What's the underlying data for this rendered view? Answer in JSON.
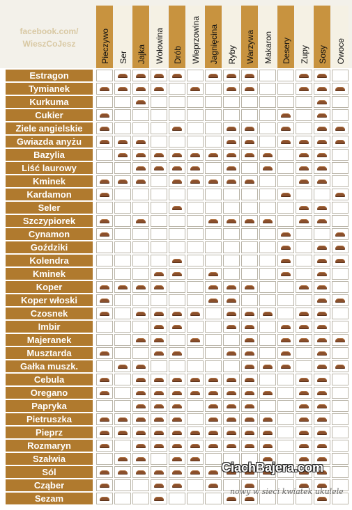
{
  "brand": {
    "line1": "facebook.com/",
    "line2": "WieszCoJesz"
  },
  "colors": {
    "label_bg": "#b07a2e",
    "header_odd": "#c8933f",
    "header_even": "#f5f1e4",
    "cell_fill": "#ffffff",
    "grid": "#b9b4a7",
    "spice": "#8a4f2b"
  },
  "icon": "spice-pile-icon",
  "columns": [
    "Pieczywo",
    "Ser",
    "Jajka",
    "Wołowina",
    "Drób",
    "Wieprzowina",
    "Jagnięcina",
    "Ryby",
    "Warzywa",
    "Makaron",
    "Desery",
    "Zupy",
    "Sosy",
    "Owoce"
  ],
  "rows": [
    {
      "name": "Estragon",
      "marks": [
        0,
        1,
        1,
        1,
        1,
        0,
        1,
        1,
        1,
        0,
        0,
        1,
        1,
        0
      ]
    },
    {
      "name": "Tymianek",
      "marks": [
        1,
        1,
        1,
        1,
        0,
        1,
        0,
        1,
        1,
        0,
        0,
        1,
        1,
        1
      ]
    },
    {
      "name": "Kurkuma",
      "marks": [
        0,
        0,
        1,
        0,
        0,
        0,
        0,
        0,
        0,
        0,
        0,
        0,
        1,
        0
      ]
    },
    {
      "name": "Cukier",
      "marks": [
        1,
        0,
        0,
        0,
        0,
        0,
        0,
        0,
        0,
        0,
        1,
        0,
        1,
        0
      ]
    },
    {
      "name": "Ziele angielskie",
      "marks": [
        1,
        0,
        0,
        0,
        1,
        0,
        0,
        1,
        1,
        0,
        1,
        0,
        1,
        1
      ]
    },
    {
      "name": "Gwiazda anyżu",
      "marks": [
        1,
        1,
        1,
        0,
        0,
        0,
        0,
        1,
        1,
        0,
        1,
        1,
        1,
        1
      ]
    },
    {
      "name": "Bazylia",
      "marks": [
        0,
        1,
        1,
        1,
        1,
        1,
        1,
        1,
        1,
        1,
        0,
        1,
        1,
        0
      ]
    },
    {
      "name": "Liść laurowy",
      "marks": [
        0,
        0,
        1,
        1,
        1,
        1,
        0,
        1,
        0,
        1,
        0,
        1,
        1,
        0
      ]
    },
    {
      "name": "Kminek",
      "marks": [
        1,
        1,
        1,
        0,
        1,
        1,
        1,
        1,
        1,
        0,
        0,
        1,
        1,
        0
      ]
    },
    {
      "name": "Kardamon",
      "marks": [
        1,
        0,
        0,
        0,
        0,
        0,
        0,
        0,
        0,
        0,
        1,
        0,
        0,
        1
      ]
    },
    {
      "name": "Seler",
      "marks": [
        0,
        0,
        0,
        0,
        1,
        0,
        0,
        0,
        0,
        0,
        0,
        1,
        1,
        0
      ]
    },
    {
      "name": "Szczypiorek",
      "marks": [
        1,
        0,
        1,
        0,
        0,
        0,
        1,
        1,
        1,
        1,
        0,
        1,
        1,
        0
      ]
    },
    {
      "name": "Cynamon",
      "marks": [
        1,
        0,
        0,
        0,
        0,
        0,
        0,
        0,
        0,
        0,
        1,
        0,
        0,
        1
      ]
    },
    {
      "name": "Goździki",
      "marks": [
        0,
        0,
        0,
        0,
        0,
        0,
        0,
        0,
        0,
        0,
        1,
        0,
        1,
        1
      ]
    },
    {
      "name": "Kolendra",
      "marks": [
        0,
        0,
        0,
        0,
        1,
        0,
        0,
        0,
        0,
        0,
        1,
        0,
        1,
        1
      ]
    },
    {
      "name": "Kminek",
      "marks": [
        0,
        0,
        0,
        1,
        1,
        0,
        1,
        0,
        0,
        0,
        1,
        0,
        1,
        0
      ]
    },
    {
      "name": "Koper",
      "marks": [
        1,
        1,
        1,
        1,
        0,
        0,
        1,
        1,
        1,
        0,
        0,
        1,
        1,
        0
      ]
    },
    {
      "name": "Koper włoski",
      "marks": [
        1,
        0,
        0,
        0,
        0,
        0,
        1,
        1,
        0,
        0,
        0,
        0,
        1,
        1
      ]
    },
    {
      "name": "Czosnek",
      "marks": [
        1,
        0,
        1,
        1,
        1,
        1,
        0,
        1,
        1,
        1,
        0,
        1,
        1,
        0
      ]
    },
    {
      "name": "Imbir",
      "marks": [
        0,
        0,
        0,
        1,
        1,
        0,
        0,
        1,
        1,
        0,
        1,
        1,
        1,
        0
      ]
    },
    {
      "name": "Majeranek",
      "marks": [
        0,
        0,
        1,
        1,
        0,
        1,
        0,
        0,
        1,
        0,
        1,
        1,
        1,
        1
      ]
    },
    {
      "name": "Musztarda",
      "marks": [
        1,
        0,
        0,
        1,
        1,
        0,
        0,
        1,
        1,
        0,
        1,
        0,
        1,
        0
      ]
    },
    {
      "name": "Gałka muszk.",
      "marks": [
        0,
        1,
        1,
        0,
        0,
        0,
        0,
        0,
        1,
        1,
        1,
        0,
        1,
        1
      ]
    },
    {
      "name": "Cebula",
      "marks": [
        1,
        0,
        1,
        1,
        1,
        1,
        1,
        1,
        1,
        0,
        0,
        1,
        1,
        0
      ]
    },
    {
      "name": "Oregano",
      "marks": [
        1,
        0,
        1,
        1,
        1,
        1,
        1,
        1,
        1,
        1,
        0,
        1,
        1,
        0
      ]
    },
    {
      "name": "Papryka",
      "marks": [
        0,
        0,
        1,
        1,
        1,
        0,
        1,
        1,
        1,
        0,
        0,
        1,
        1,
        0
      ]
    },
    {
      "name": "Pietruszka",
      "marks": [
        1,
        1,
        1,
        1,
        1,
        0,
        1,
        1,
        1,
        1,
        0,
        1,
        1,
        0
      ]
    },
    {
      "name": "Pieprz",
      "marks": [
        1,
        1,
        1,
        1,
        1,
        1,
        1,
        1,
        1,
        1,
        0,
        1,
        1,
        0
      ]
    },
    {
      "name": "Rozmaryn",
      "marks": [
        1,
        0,
        1,
        1,
        1,
        1,
        1,
        1,
        1,
        1,
        0,
        1,
        1,
        0
      ]
    },
    {
      "name": "Szałwia",
      "marks": [
        0,
        1,
        1,
        0,
        1,
        1,
        0,
        0,
        0,
        1,
        0,
        1,
        1,
        0
      ]
    },
    {
      "name": "Sól",
      "marks": [
        1,
        1,
        1,
        1,
        1,
        1,
        1,
        1,
        1,
        1,
        0,
        1,
        1,
        0
      ]
    },
    {
      "name": "Cząber",
      "marks": [
        1,
        0,
        0,
        1,
        1,
        0,
        1,
        0,
        1,
        0,
        0,
        1,
        1,
        0
      ]
    },
    {
      "name": "Sezam",
      "marks": [
        1,
        0,
        0,
        1,
        0,
        0,
        0,
        1,
        1,
        0,
        0,
        0,
        1,
        0
      ]
    }
  ],
  "watermark": {
    "site": "CiachBajera.com",
    "tagline": "nowy w sieci kwiatek ukulele"
  }
}
